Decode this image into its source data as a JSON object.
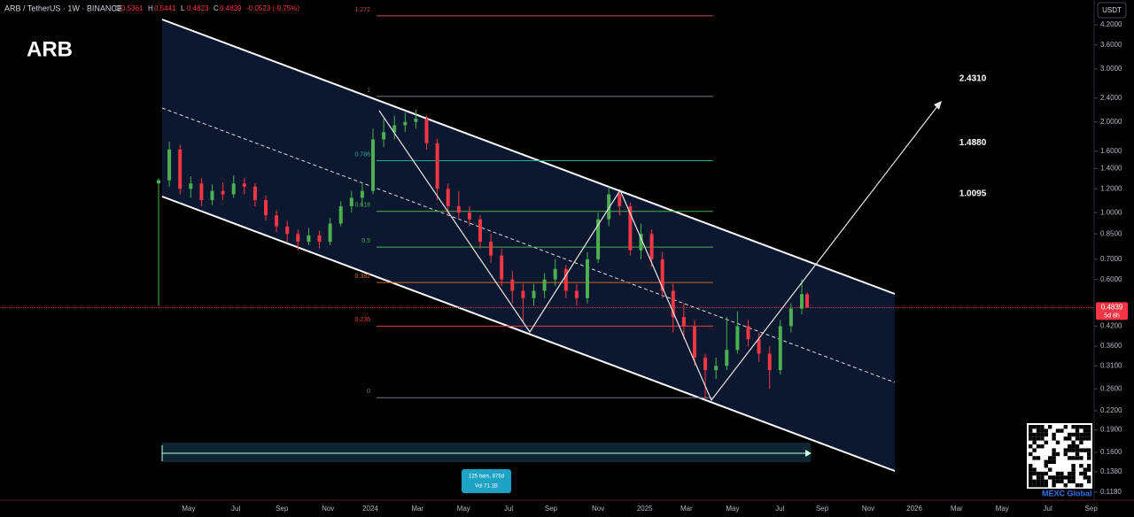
{
  "chart_data": {
    "type": "candlestick",
    "title": "ARB",
    "symbol": "ARB / TetherUS · 1W · BINANCE",
    "ohlc_labels": [
      "O",
      "H",
      "L",
      "C"
    ],
    "change": "-0.0523 (-9.75%)",
    "countdown": "5d 8h",
    "y_unit": "USDT",
    "log_scale": true,
    "grid": false,
    "up_color": "#4caf50",
    "down_color": "#f23645",
    "x": [
      0,
      2,
      4,
      6,
      8,
      10,
      12,
      14,
      16,
      18,
      20,
      22,
      24,
      26,
      28,
      30,
      32,
      34,
      36,
      38,
      40,
      42,
      44,
      46,
      48,
      50,
      52,
      54,
      56,
      58,
      60,
      62,
      64,
      66,
      68,
      70,
      72,
      74,
      76,
      78,
      80,
      82,
      84,
      86,
      88,
      90,
      92,
      94,
      96,
      98,
      100,
      102,
      104,
      106,
      108,
      110,
      112,
      114,
      116,
      118,
      120,
      121
    ],
    "open": [
      1.25,
      1.28,
      1.62,
      1.2,
      1.25,
      1.1,
      1.18,
      1.15,
      1.25,
      1.22,
      1.1,
      0.98,
      0.9,
      0.85,
      0.8,
      0.84,
      0.8,
      0.92,
      1.05,
      1.12,
      1.18,
      1.75,
      1.85,
      1.95,
      2.0,
      2.05,
      1.7,
      1.2,
      1.05,
      1.0,
      0.95,
      0.8,
      0.72,
      0.6,
      0.55,
      0.52,
      0.55,
      0.6,
      0.65,
      0.55,
      0.52,
      0.7,
      0.95,
      1.15,
      1.05,
      0.75,
      0.85,
      0.7,
      0.55,
      0.45,
      0.42,
      0.33,
      0.3,
      0.31,
      0.35,
      0.42,
      0.38,
      0.34,
      0.3,
      0.42,
      0.48,
      0.5361
    ],
    "high": [
      1.3,
      1.72,
      1.68,
      1.32,
      1.3,
      1.24,
      1.26,
      1.33,
      1.3,
      1.25,
      1.14,
      1.02,
      0.94,
      0.88,
      0.89,
      0.87,
      0.96,
      1.09,
      1.18,
      1.25,
      1.9,
      2.05,
      2.1,
      2.15,
      2.2,
      2.1,
      1.75,
      1.25,
      1.18,
      1.05,
      0.98,
      0.85,
      0.76,
      0.64,
      0.58,
      0.58,
      0.63,
      0.7,
      0.67,
      0.58,
      0.74,
      1.0,
      1.22,
      1.18,
      1.08,
      0.92,
      0.88,
      0.74,
      0.58,
      0.5,
      0.44,
      0.34,
      0.33,
      0.45,
      0.47,
      0.44,
      0.4,
      0.36,
      0.44,
      0.5,
      0.6,
      0.5441
    ],
    "low": [
      0.49,
      1.22,
      1.15,
      1.12,
      1.05,
      1.06,
      1.1,
      1.12,
      1.15,
      1.05,
      0.94,
      0.86,
      0.8,
      0.75,
      0.78,
      0.76,
      0.78,
      0.9,
      1.0,
      1.05,
      1.15,
      1.65,
      1.75,
      1.85,
      1.9,
      1.62,
      1.1,
      0.98,
      0.96,
      0.9,
      0.76,
      0.68,
      0.57,
      0.5,
      0.43,
      0.49,
      0.52,
      0.57,
      0.52,
      0.49,
      0.5,
      0.68,
      0.9,
      0.98,
      0.72,
      0.7,
      0.66,
      0.52,
      0.4,
      0.38,
      0.31,
      0.24,
      0.28,
      0.3,
      0.34,
      0.36,
      0.32,
      0.26,
      0.29,
      0.4,
      0.46,
      0.4823
    ],
    "close": [
      1.28,
      1.62,
      1.2,
      1.25,
      1.1,
      1.18,
      1.15,
      1.25,
      1.22,
      1.1,
      0.98,
      0.9,
      0.85,
      0.8,
      0.84,
      0.8,
      0.92,
      1.05,
      1.12,
      1.18,
      1.75,
      1.85,
      1.95,
      2.0,
      2.05,
      1.7,
      1.2,
      1.05,
      1.0,
      0.95,
      0.8,
      0.72,
      0.6,
      0.55,
      0.52,
      0.55,
      0.6,
      0.65,
      0.55,
      0.52,
      0.7,
      0.95,
      1.15,
      1.05,
      0.75,
      0.85,
      0.7,
      0.55,
      0.45,
      0.42,
      0.33,
      0.3,
      0.31,
      0.35,
      0.42,
      0.38,
      0.34,
      0.3,
      0.42,
      0.48,
      0.5361,
      0.4839
    ],
    "xlim": [
      -29.59,
      174.55
    ],
    "xticks": [
      {
        "value": 5.6,
        "label": "May"
      },
      {
        "value": 14.4,
        "label": "Jul"
      },
      {
        "value": 23.0,
        "label": "Sep"
      },
      {
        "value": 31.6,
        "label": "Nov"
      },
      {
        "value": 39.5,
        "label": "2024"
      },
      {
        "value": 48.3,
        "label": "Mar"
      },
      {
        "value": 56.9,
        "label": "May"
      },
      {
        "value": 65.3,
        "label": "Jul"
      },
      {
        "value": 73.2,
        "label": "Sep"
      },
      {
        "value": 82.0,
        "label": "Nov"
      },
      {
        "value": 90.7,
        "label": "2025"
      },
      {
        "value": 98.5,
        "label": "Mar"
      },
      {
        "value": 107.1,
        "label": "May"
      },
      {
        "value": 115.9,
        "label": "Jul"
      },
      {
        "value": 123.8,
        "label": "Sep"
      },
      {
        "value": 132.4,
        "label": "Nov"
      },
      {
        "value": 141.0,
        "label": "2026"
      },
      {
        "value": 148.9,
        "label": "Mar"
      },
      {
        "value": 157.4,
        "label": "May"
      },
      {
        "value": 165.9,
        "label": "Jul"
      },
      {
        "value": 174.0,
        "label": "Sep"
      }
    ],
    "ylim": [
      0.111,
      5.08
    ],
    "yticks": [
      {
        "value": 4.2,
        "label": "4.2000"
      },
      {
        "value": 3.6,
        "label": "3.6000"
      },
      {
        "value": 3.0,
        "label": "3.0000"
      },
      {
        "value": 2.4,
        "label": "2.4000"
      },
      {
        "value": 2.0,
        "label": "2.0000"
      },
      {
        "value": 1.6,
        "label": "1.6000"
      },
      {
        "value": 1.4,
        "label": "1.4000"
      },
      {
        "value": 1.2,
        "label": "1.2000"
      },
      {
        "value": 1.0,
        "label": "1.0000"
      },
      {
        "value": 0.85,
        "label": "0.8500"
      },
      {
        "value": 0.7,
        "label": "0.7000"
      },
      {
        "value": 0.6,
        "label": "0.6000"
      },
      {
        "value": 0.42,
        "label": "0.4200"
      },
      {
        "value": 0.36,
        "label": "0.3600"
      },
      {
        "value": 0.31,
        "label": "0.3100"
      },
      {
        "value": 0.26,
        "label": "0.2600"
      },
      {
        "value": 0.22,
        "label": "0.2200"
      },
      {
        "value": 0.19,
        "label": "0.1900"
      },
      {
        "value": 0.16,
        "label": "0.1600"
      },
      {
        "value": 0.138,
        "label": "0.1380"
      },
      {
        "value": 0.118,
        "label": "0.1180"
      }
    ],
    "fib_levels": [
      {
        "level": 1.272,
        "price": 4.5,
        "color": "#c0504d"
      },
      {
        "level": 1,
        "price": 2.431,
        "color": "#787b86"
      },
      {
        "level": 0.786,
        "price": 1.488,
        "color": "#22ab94"
      },
      {
        "level": 0.618,
        "price": 1.0095,
        "color": "#4caf50"
      },
      {
        "level": 0.5,
        "price": 0.768,
        "color": "#4caf50"
      },
      {
        "level": 0.382,
        "price": 0.586,
        "color": "#d2691e"
      },
      {
        "level": 0.236,
        "price": 0.42,
        "color": "#f23645"
      },
      {
        "level": 0,
        "price": 0.243,
        "color": "#787b86"
      }
    ],
    "targets": [
      {
        "value": 2.431,
        "label": "2.4310"
      },
      {
        "value": 1.488,
        "label": "1.4880"
      },
      {
        "value": 1.0095,
        "label": "1.0095"
      }
    ],
    "measure": {
      "bars": "125 bars, 875d",
      "volume": "Vol 71.1B"
    },
    "watermark": "MEXC Global"
  }
}
